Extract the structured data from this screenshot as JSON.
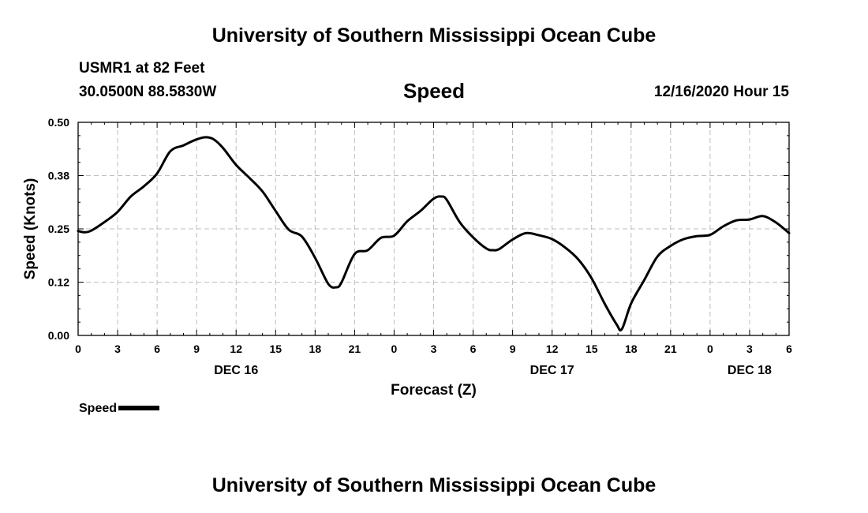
{
  "page": {
    "title_top": "University of Southern Mississippi Ocean Cube",
    "title_bottom": "University of Southern Mississippi Ocean Cube",
    "station": "USMR1 at 82 Feet",
    "coords": "30.0500N 88.5830W",
    "parameter": "Speed",
    "datetime": "12/16/2020 Hour 15",
    "legend_label": "Speed"
  },
  "chart_data": {
    "type": "line",
    "title": "Speed",
    "xlabel": "Forecast (Z)",
    "ylabel": "Speed (Knots)",
    "ylim": [
      0,
      0.5
    ],
    "xlim": [
      0,
      54
    ],
    "grid": true,
    "line_color": "#000000",
    "grid_color": "#bdbdbd",
    "yticks": [
      {
        "value": 0.0,
        "label": "0.00"
      },
      {
        "value": 0.125,
        "label": "0.12"
      },
      {
        "value": 0.25,
        "label": "0.25"
      },
      {
        "value": 0.375,
        "label": "0.38"
      },
      {
        "value": 0.5,
        "label": "0.50"
      }
    ],
    "xticks": [
      {
        "value": 0,
        "label": "0"
      },
      {
        "value": 3,
        "label": "3"
      },
      {
        "value": 6,
        "label": "6"
      },
      {
        "value": 9,
        "label": "9"
      },
      {
        "value": 12,
        "label": "12"
      },
      {
        "value": 15,
        "label": "15"
      },
      {
        "value": 18,
        "label": "18"
      },
      {
        "value": 21,
        "label": "21"
      },
      {
        "value": 24,
        "label": "0"
      },
      {
        "value": 27,
        "label": "3"
      },
      {
        "value": 30,
        "label": "6"
      },
      {
        "value": 33,
        "label": "9"
      },
      {
        "value": 36,
        "label": "12"
      },
      {
        "value": 39,
        "label": "15"
      },
      {
        "value": 42,
        "label": "18"
      },
      {
        "value": 45,
        "label": "21"
      },
      {
        "value": 48,
        "label": "0"
      },
      {
        "value": 51,
        "label": "3"
      },
      {
        "value": 54,
        "label": "6"
      }
    ],
    "date_labels": [
      {
        "value": 12,
        "label": "DEC 16"
      },
      {
        "value": 36,
        "label": "DEC 17"
      },
      {
        "value": 51,
        "label": "DEC 18"
      }
    ],
    "series": [
      {
        "name": "Speed",
        "x": [
          0,
          0.5,
          1,
          2,
          3,
          4,
          5,
          6,
          7,
          8,
          9,
          9.7,
          10.3,
          11,
          12,
          13,
          14,
          15,
          16,
          17,
          18,
          19,
          19.6,
          20,
          21,
          22,
          23,
          24,
          25,
          26,
          27,
          27.6,
          28,
          29,
          30,
          31,
          31.5,
          32,
          33,
          34,
          35,
          36,
          37,
          38,
          39,
          40,
          40.9,
          41.3,
          42,
          43,
          44,
          45,
          46,
          47,
          48,
          49,
          50,
          51,
          52,
          53,
          54
        ],
        "values": [
          0.245,
          0.242,
          0.246,
          0.266,
          0.29,
          0.326,
          0.35,
          0.38,
          0.432,
          0.446,
          0.46,
          0.465,
          0.46,
          0.44,
          0.4,
          0.37,
          0.338,
          0.292,
          0.248,
          0.232,
          0.182,
          0.121,
          0.113,
          0.124,
          0.191,
          0.2,
          0.229,
          0.234,
          0.268,
          0.292,
          0.321,
          0.326,
          0.318,
          0.265,
          0.23,
          0.204,
          0.2,
          0.203,
          0.225,
          0.24,
          0.235,
          0.226,
          0.206,
          0.178,
          0.134,
          0.074,
          0.026,
          0.015,
          0.075,
          0.13,
          0.185,
          0.21,
          0.226,
          0.233,
          0.236,
          0.256,
          0.27,
          0.272,
          0.28,
          0.265,
          0.24
        ]
      }
    ]
  }
}
